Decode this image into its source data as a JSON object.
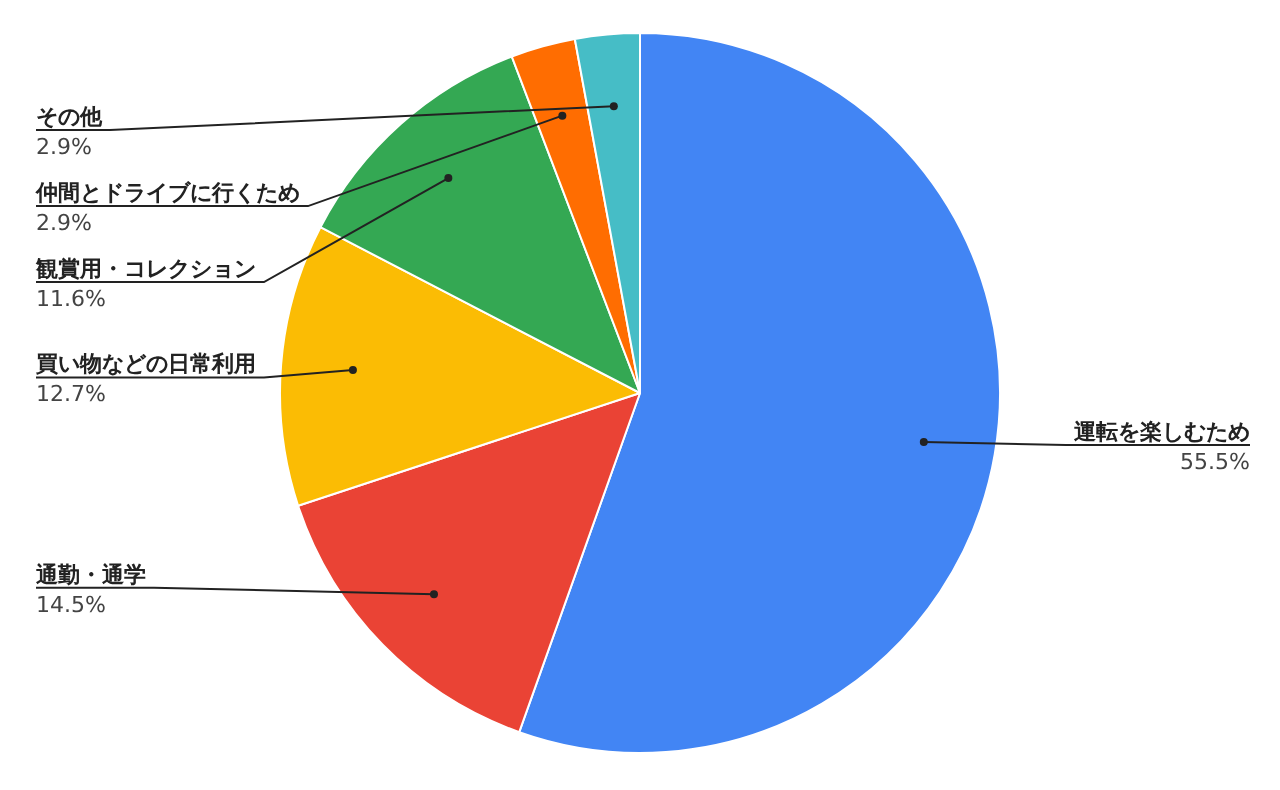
{
  "chart_data": {
    "type": "pie",
    "categories": [
      "運転を楽しむため",
      "通勤・通学",
      "買い物などの日常利用",
      "観賞用・コレクション",
      "仲間とドライブに行くため",
      "その他"
    ],
    "values": [
      55.5,
      14.5,
      12.7,
      11.6,
      2.9,
      2.9
    ],
    "value_labels": [
      "55.5%",
      "14.5%",
      "12.7%",
      "11.6%",
      "2.9%",
      "2.9%"
    ],
    "colors": [
      "#4285f4",
      "#ea4335",
      "#fbbc04",
      "#34a853",
      "#ff6d01",
      "#46bdc6"
    ],
    "legend": false
  }
}
